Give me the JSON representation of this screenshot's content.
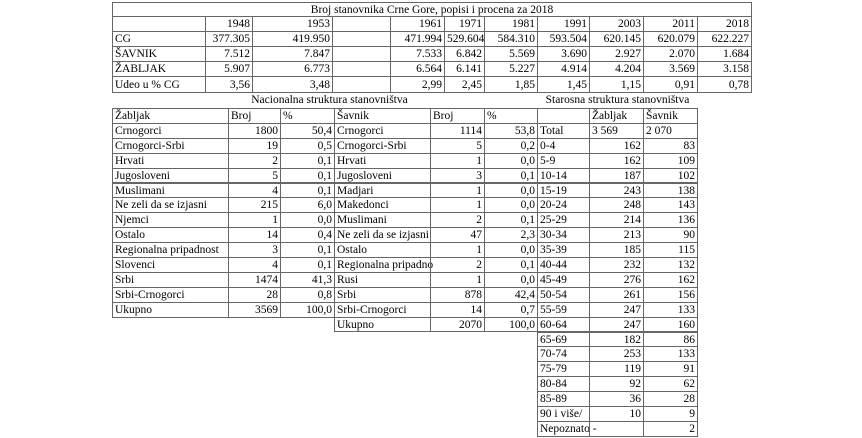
{
  "title": "Broj stanovnika Crne Gore, popisi i procena za 2018",
  "population": {
    "years": [
      "1948",
      "1953",
      "1961",
      "1971",
      "1981",
      "1991",
      "2003",
      "2011",
      "2018"
    ],
    "rows": [
      {
        "label": "CG",
        "values": [
          "377.305",
          "419.950",
          "471.994",
          "529.604",
          "584.310",
          "593.504",
          "620.145",
          "620.079",
          "622.227"
        ]
      },
      {
        "label": "ŠAVNIK",
        "values": [
          "7.512",
          "7.847",
          "7.533",
          "6.842",
          "5.569",
          "3.690",
          "2.927",
          "2.070",
          "1.684"
        ]
      },
      {
        "label": "ŽABLJAK",
        "values": [
          "5.907",
          "6.773",
          "6.564",
          "6.141",
          "5.227",
          "4.914",
          "4.204",
          "3.569",
          "3.158"
        ]
      },
      {
        "label": "Udeo u % CG",
        "values": [
          "3,56",
          "3,48",
          "2,99",
          "2,45",
          "1,85",
          "1,45",
          "1,15",
          "0,91",
          "0,78"
        ]
      }
    ]
  },
  "national_title": "Nacionalna struktura stanovništva",
  "age_title": "Starosna struktura stanovništva",
  "zabljak_national": {
    "header": [
      "Žabljak",
      "Broj",
      "%"
    ],
    "rows": [
      [
        "Crnogorci",
        "1800",
        "50,4"
      ],
      [
        "Crnogorci-Srbi",
        "19",
        "0,5"
      ],
      [
        "Hrvati",
        "2",
        "0,1"
      ],
      [
        "Jugosloveni",
        "5",
        "0,1"
      ],
      [
        "Muslimani",
        "4",
        "0,1"
      ],
      [
        "Ne zeli da se izjasni",
        "215",
        "6,0"
      ],
      [
        "Njemci",
        "1",
        "0,0"
      ],
      [
        "Ostalo",
        "14",
        "0,4"
      ],
      [
        "Regionalna pripadnost",
        "3",
        "0,1"
      ],
      [
        "Slovenci",
        "4",
        "0,1"
      ],
      [
        "Srbi",
        "1474",
        "41,3"
      ],
      [
        "Srbi-Crnogorci",
        "28",
        "0,8"
      ],
      [
        "Ukupno",
        "3569",
        "100,0"
      ]
    ]
  },
  "savnik_national": {
    "header": [
      "Šavnik",
      "Broj",
      "%"
    ],
    "rows": [
      [
        "Crnogorci",
        "1114",
        "53,8"
      ],
      [
        "Crnogorci-Srbi",
        "5",
        "0,2"
      ],
      [
        "Hrvati",
        "1",
        "0,0"
      ],
      [
        "Jugosloveni",
        "3",
        "0,1"
      ],
      [
        "Madjari",
        "1",
        "0,0"
      ],
      [
        "Makedonci",
        "1",
        "0,0"
      ],
      [
        "Muslimani",
        "2",
        "0,1"
      ],
      [
        "Ne zeli da se izjasni",
        "47",
        "2,3"
      ],
      [
        "Ostalo",
        "1",
        "0,0"
      ],
      [
        "Regionalna pripadno",
        "2",
        "0,1"
      ],
      [
        "Rusi",
        "1",
        "0,0"
      ],
      [
        "Srbi",
        "878",
        "42,4"
      ],
      [
        "Srbi-Crnogorci",
        "14",
        "0,7"
      ],
      [
        "Ukupno",
        "2070",
        "100,0"
      ]
    ]
  },
  "age": {
    "header": [
      "Žabljak",
      "Šavnik"
    ],
    "rows": [
      [
        "Total",
        "3 569",
        "2 070"
      ],
      [
        "0-4",
        "162",
        "83"
      ],
      [
        "5-9",
        "162",
        "109"
      ],
      [
        "10-14",
        "187",
        "102"
      ],
      [
        "15-19",
        "243",
        "138"
      ],
      [
        "20-24",
        "248",
        "143"
      ],
      [
        "25-29",
        "214",
        "136"
      ],
      [
        "30-34",
        "213",
        "90"
      ],
      [
        "35-39",
        "185",
        "115"
      ],
      [
        "40-44",
        "232",
        "132"
      ],
      [
        "45-49",
        "276",
        "162"
      ],
      [
        "50-54",
        "261",
        "156"
      ],
      [
        "55-59",
        "247",
        "133"
      ],
      [
        "60-64",
        "247",
        "160"
      ],
      [
        "65-69",
        "182",
        "86"
      ],
      [
        "70-74",
        "253",
        "133"
      ],
      [
        "75-79",
        "119",
        "91"
      ],
      [
        "80-84",
        "92",
        "62"
      ],
      [
        "85-89",
        "36",
        "28"
      ],
      [
        "90 i više/",
        "10",
        "9"
      ],
      [
        "Nepoznato -",
        null,
        "2"
      ]
    ]
  }
}
